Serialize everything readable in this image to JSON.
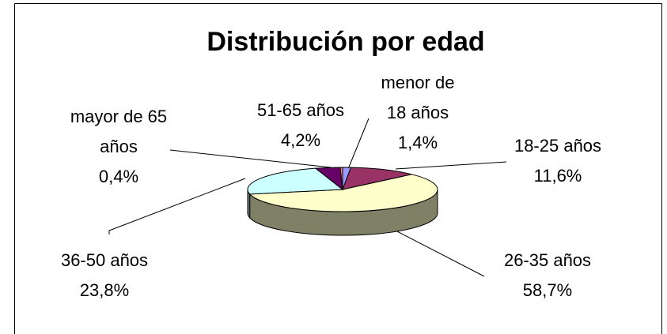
{
  "chart_data": {
    "type": "pie3d",
    "title": "Distribución por edad",
    "categories": [
      "menor de 18 años",
      "18-25 años",
      "26-35 años",
      "36-50 años",
      "51-65 años",
      "mayor de 65 años"
    ],
    "values": [
      1.4,
      11.6,
      58.7,
      23.8,
      4.2,
      0.4
    ],
    "value_labels": [
      "1,4%",
      "11,6%",
      "58,7%",
      "23,8%",
      "4,2%",
      "0,4%"
    ],
    "colors": [
      "#9999ff",
      "#993366",
      "#ffffcc",
      "#ccffff",
      "#660066",
      "#ff8080"
    ]
  }
}
